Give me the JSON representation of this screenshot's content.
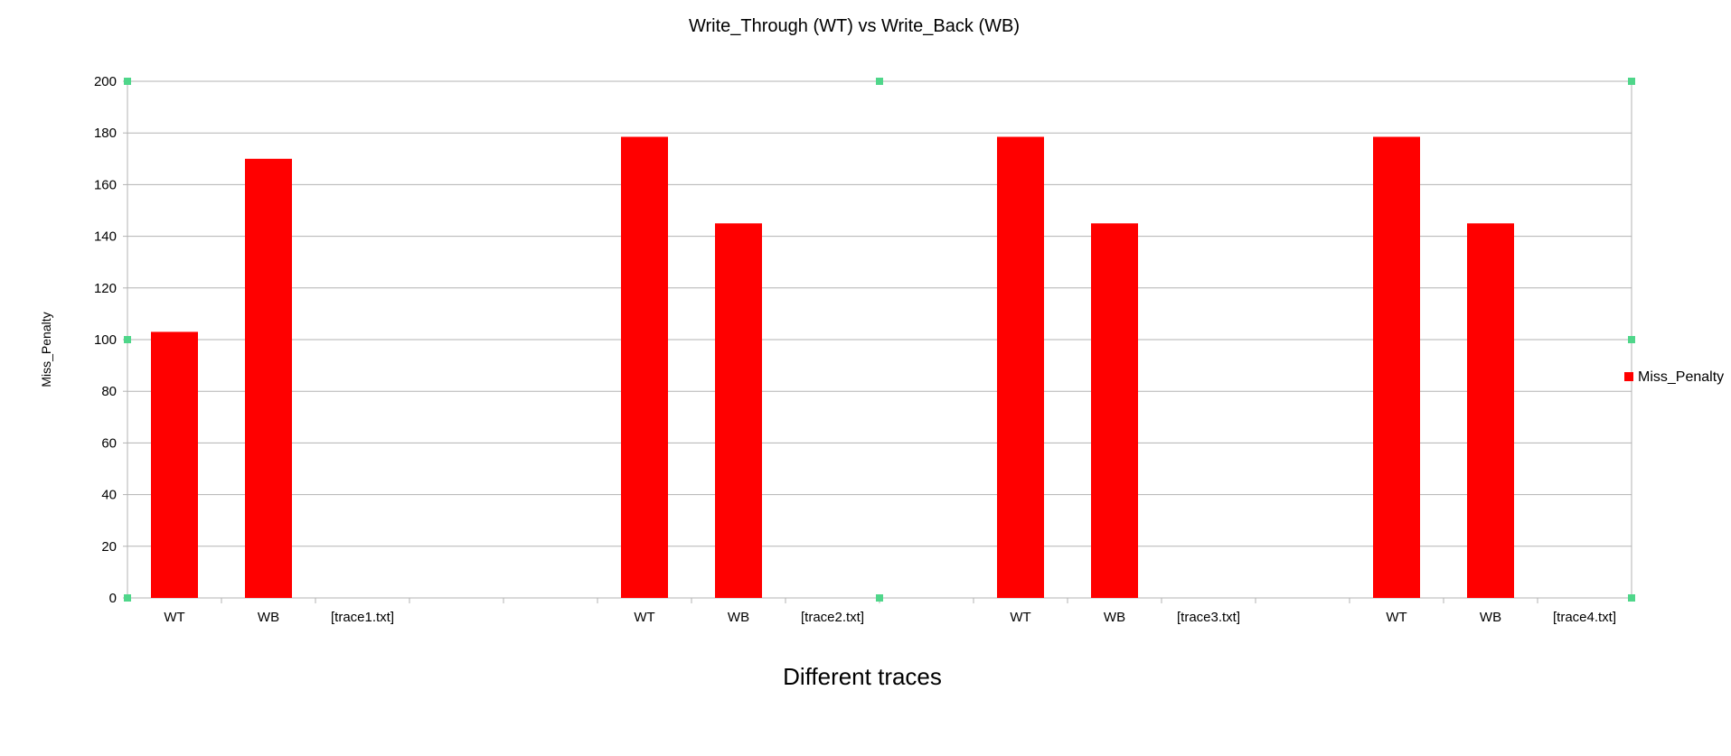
{
  "chart_data": {
    "type": "bar",
    "title": "Write_Through  (WT) vs Write_Back  (WB)",
    "xlabel": "Different traces",
    "ylabel": "Miss_Penalty",
    "ylim": [
      0,
      200
    ],
    "yticks": [
      0,
      20,
      40,
      60,
      80,
      100,
      120,
      140,
      160,
      180,
      200
    ],
    "grid": true,
    "legend": {
      "placement": "right",
      "entries": [
        "Miss_Penalty"
      ]
    },
    "categories": [
      "WT",
      "WB",
      "[trace1.txt]",
      "",
      "",
      "WT",
      "WB",
      "[trace2.txt]",
      "",
      "WT",
      "WB",
      "[trace3.txt]",
      "",
      "WT",
      "WB",
      "[trace4.txt]"
    ],
    "series": [
      {
        "name": "Miss_Penalty",
        "color": "#ff0000",
        "values": [
          103,
          170,
          null,
          null,
          null,
          178.5,
          145,
          null,
          null,
          178.5,
          145,
          null,
          null,
          178.5,
          145,
          null
        ]
      }
    ]
  }
}
